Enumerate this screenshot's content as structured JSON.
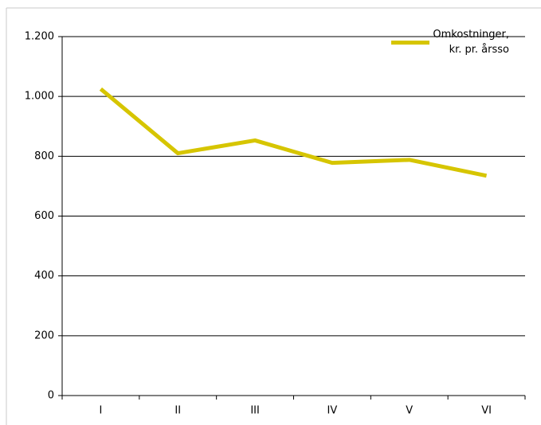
{
  "chart_data": {
    "type": "line",
    "categories": [
      "I",
      "II",
      "III",
      "IV",
      "V",
      "VI"
    ],
    "series": [
      {
        "name": "Omkostninger, kr. pr. årsso",
        "color": "#d6c500",
        "values": [
          1025,
          810,
          853,
          778,
          788,
          735
        ]
      }
    ],
    "ylim": [
      0,
      1200
    ],
    "yticks": [
      0,
      200,
      400,
      600,
      800,
      {
        "value": 1000,
        "label": "1.000"
      },
      {
        "value": 1200,
        "label": "1.200"
      }
    ],
    "grid": true,
    "legend": "top-right"
  }
}
